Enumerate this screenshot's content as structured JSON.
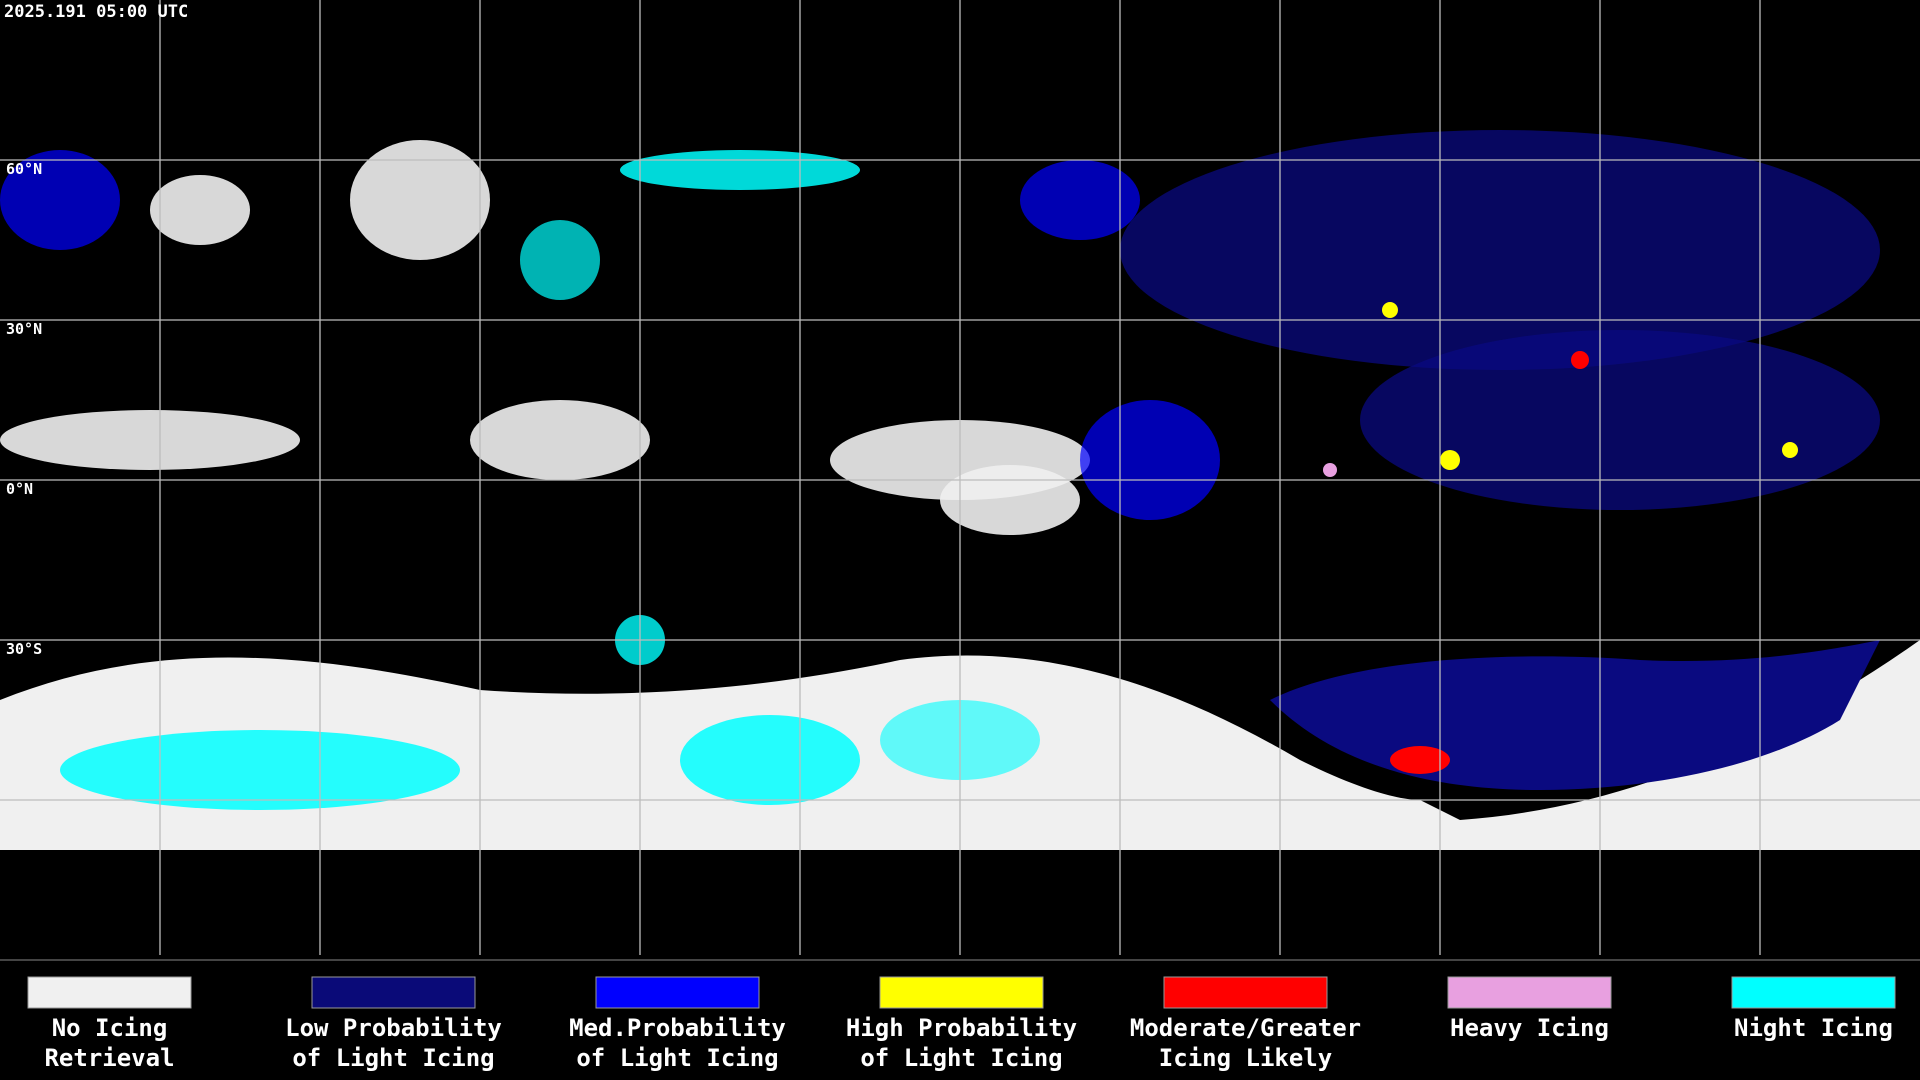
{
  "timestamp": "2025.191 05:00 UTC",
  "latitude_labels": [
    "60°N",
    "30°N",
    "0°N",
    "30°S"
  ],
  "legend": [
    {
      "lines": [
        "No Icing",
        "Retrieval"
      ],
      "color": "#f0f0f0"
    },
    {
      "lines": [
        "Low Probability",
        "of Light Icing"
      ],
      "color": "#0a0a78"
    },
    {
      "lines": [
        "Med.Probability",
        "of Light Icing"
      ],
      "color": "#0000ff"
    },
    {
      "lines": [
        "High Probability",
        "of Light Icing"
      ],
      "color": "#ffff00"
    },
    {
      "lines": [
        "Moderate/Greater",
        "Icing Likely"
      ],
      "color": "#ff0000"
    },
    {
      "lines": [
        "Heavy Icing"
      ],
      "color": "#e8a0e0"
    },
    {
      "lines": [
        "Night Icing"
      ],
      "color": "#00ffff"
    }
  ]
}
